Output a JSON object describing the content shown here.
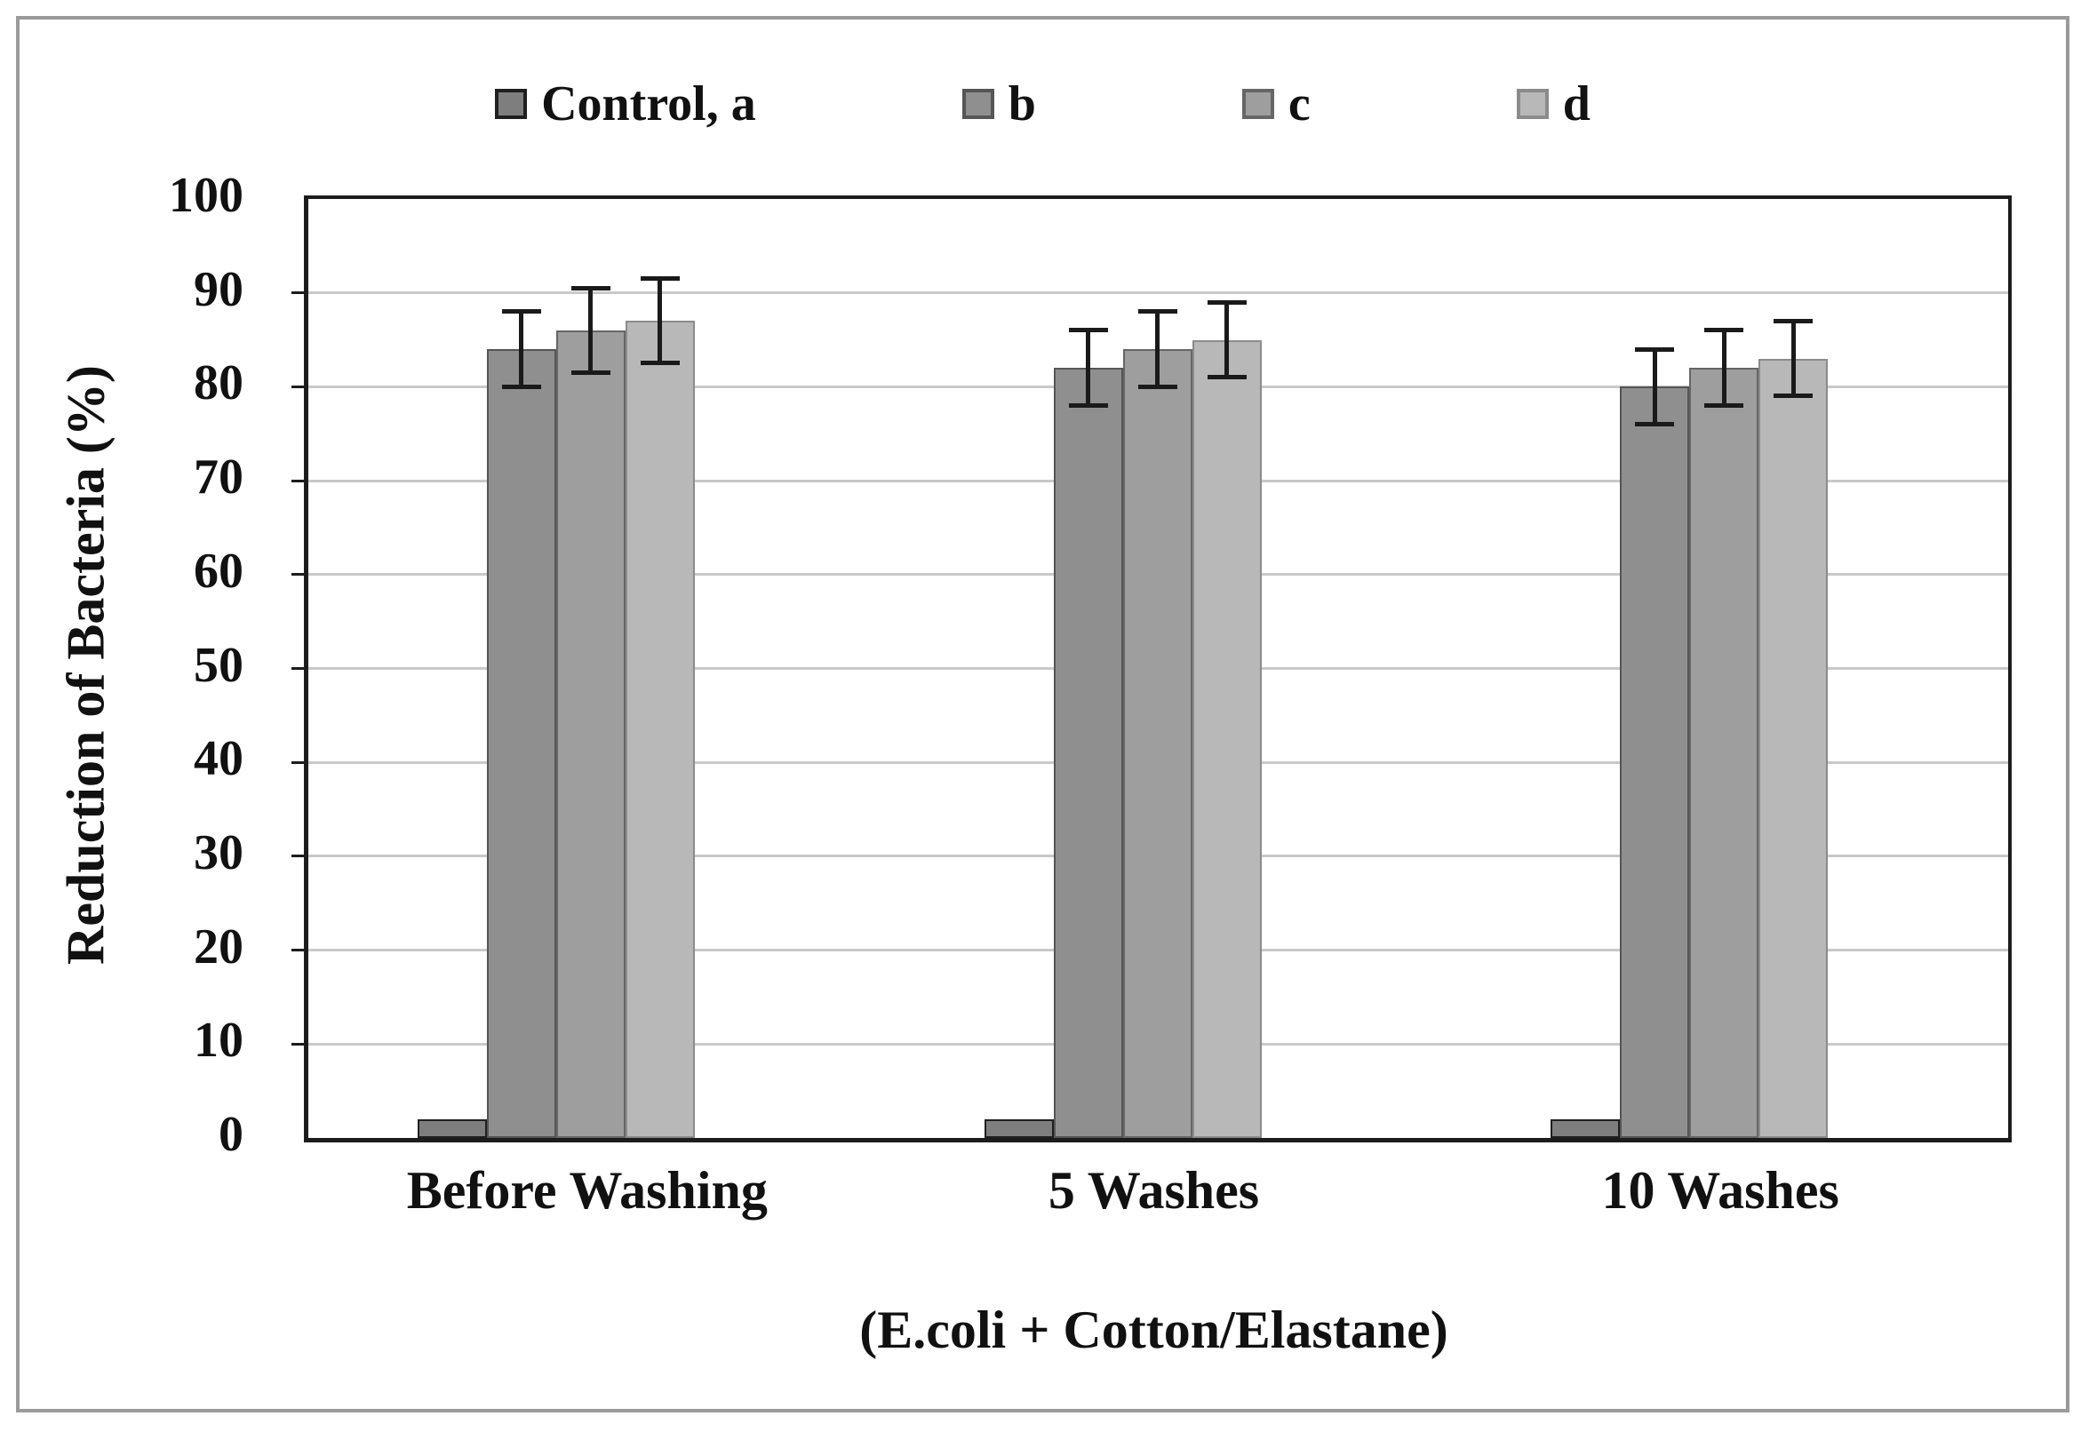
{
  "figure": {
    "background": "#ffffff",
    "border_color": "#9a9a9a"
  },
  "chart_data": {
    "type": "bar",
    "title": "",
    "xlabel": "(E.coli + Cotton/Elastane)",
    "ylabel": "Reduction of Bacteria (%)",
    "categories": [
      "Before Washing",
      "5 Washes",
      "10 Washes"
    ],
    "series": [
      {
        "name": "Control, a",
        "color": "#7e7e7e",
        "border": "#1f1f1f",
        "values": [
          2,
          2,
          2
        ],
        "errors": [
          0,
          0,
          0
        ]
      },
      {
        "name": "b",
        "color": "#8f8f8f",
        "border": "#555555",
        "values": [
          84,
          82,
          80
        ],
        "errors": [
          4,
          4,
          4
        ]
      },
      {
        "name": "c",
        "color": "#9e9e9e",
        "border": "#666666",
        "values": [
          86,
          84,
          82
        ],
        "errors": [
          4.5,
          4,
          4
        ]
      },
      {
        "name": "d",
        "color": "#b8b8b8",
        "border": "#8b8b8b",
        "values": [
          87,
          85,
          83
        ],
        "errors": [
          4.5,
          4,
          4
        ]
      }
    ],
    "ylim": [
      0,
      100
    ],
    "yticks": [
      0,
      10,
      20,
      30,
      40,
      50,
      60,
      70,
      80,
      90,
      100
    ],
    "grid": true,
    "gridline_color": "#c9c9c9",
    "error_bar_color": "#1a1a1a",
    "legend_position": "top"
  }
}
